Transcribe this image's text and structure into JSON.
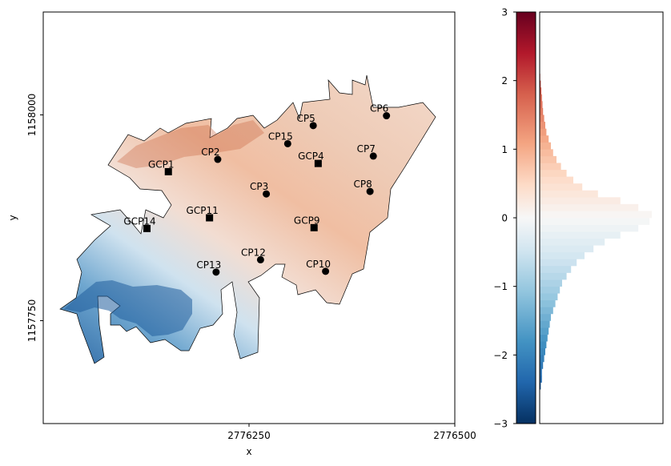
{
  "chart_data": [
    {
      "type": "scatter",
      "panel": "map",
      "xlabel": "x",
      "ylabel": "y",
      "xlim": [
        2776000,
        2776500
      ],
      "ylim": [
        1157625,
        1158125
      ],
      "xticks": [
        {
          "value": 2776250,
          "label": "2776250"
        },
        {
          "value": 2776500,
          "label": "2776500"
        }
      ],
      "yticks": [
        {
          "value": 1157750,
          "label": "1157750"
        },
        {
          "value": 1158000,
          "label": "1158000"
        }
      ],
      "grid": false,
      "colorscale_note": "diverging blue-white-red raster",
      "series": [
        {
          "marker": "circle",
          "points": [
            {
              "label": "CP2",
              "x": 2776212,
              "y": 1157946
            },
            {
              "label": "CP3",
              "x": 2776271,
              "y": 1157904
            },
            {
              "label": "CP5",
              "x": 2776328,
              "y": 1157987
            },
            {
              "label": "CP6",
              "x": 2776417,
              "y": 1157999
            },
            {
              "label": "CP7",
              "x": 2776401,
              "y": 1157950
            },
            {
              "label": "CP8",
              "x": 2776397,
              "y": 1157907
            },
            {
              "label": "CP10",
              "x": 2776343,
              "y": 1157810
            },
            {
              "label": "CP12",
              "x": 2776264,
              "y": 1157824
            },
            {
              "label": "CP13",
              "x": 2776210,
              "y": 1157809
            },
            {
              "label": "CP15",
              "x": 2776297,
              "y": 1157965
            }
          ]
        },
        {
          "marker": "square",
          "points": [
            {
              "label": "GCP1",
              "x": 2776152,
              "y": 1157931
            },
            {
              "label": "GCP4",
              "x": 2776334,
              "y": 1157941
            },
            {
              "label": "GCP9",
              "x": 2776329,
              "y": 1157863
            },
            {
              "label": "GCP11",
              "x": 2776202,
              "y": 1157875
            },
            {
              "label": "GCP14",
              "x": 2776126,
              "y": 1157862
            }
          ]
        }
      ]
    },
    {
      "type": "bar",
      "panel": "colorbar-histogram",
      "orientation": "horizontal",
      "ylim": [
        -3,
        3
      ],
      "yticks": [
        {
          "value": 3,
          "label": "3"
        },
        {
          "value": 2,
          "label": "2"
        },
        {
          "value": 1,
          "label": "1"
        },
        {
          "value": 0,
          "label": "0"
        },
        {
          "value": -1,
          "label": "−1"
        },
        {
          "value": -2,
          "label": "−2"
        },
        {
          "value": -3,
          "label": "−3"
        }
      ],
      "bin_width": 0.1,
      "bin_centers": [
        -2.45,
        -2.35,
        -2.25,
        -2.15,
        -2.05,
        -1.95,
        -1.85,
        -1.75,
        -1.65,
        -1.55,
        -1.45,
        -1.35,
        -1.25,
        -1.15,
        -1.05,
        -0.95,
        -0.85,
        -0.75,
        -0.65,
        -0.55,
        -0.45,
        -0.35,
        -0.25,
        -0.15,
        -0.05,
        0.05,
        0.15,
        0.25,
        0.35,
        0.45,
        0.55,
        0.65,
        0.75,
        0.85,
        0.95,
        1.05,
        1.15,
        1.25,
        1.35,
        1.45,
        1.55,
        1.65,
        1.75,
        1.85,
        1.95,
        2.05
      ],
      "values": [
        0.01,
        0.02,
        0.02,
        0.03,
        0.04,
        0.05,
        0.06,
        0.07,
        0.08,
        0.09,
        0.1,
        0.12,
        0.14,
        0.16,
        0.18,
        0.2,
        0.24,
        0.28,
        0.33,
        0.4,
        0.48,
        0.58,
        0.72,
        0.88,
        0.98,
        1.0,
        0.88,
        0.72,
        0.52,
        0.38,
        0.3,
        0.24,
        0.19,
        0.15,
        0.12,
        0.1,
        0.08,
        0.06,
        0.05,
        0.04,
        0.03,
        0.025,
        0.02,
        0.015,
        0.01,
        0.005
      ],
      "colorbar": {
        "min": -3,
        "max": 3,
        "colors": [
          "#053061",
          "#2166ac",
          "#4393c3",
          "#92c5de",
          "#d1e5f0",
          "#f7f7f7",
          "#fddbc7",
          "#f4a582",
          "#d6604d",
          "#b2182b",
          "#67001f"
        ]
      }
    }
  ]
}
